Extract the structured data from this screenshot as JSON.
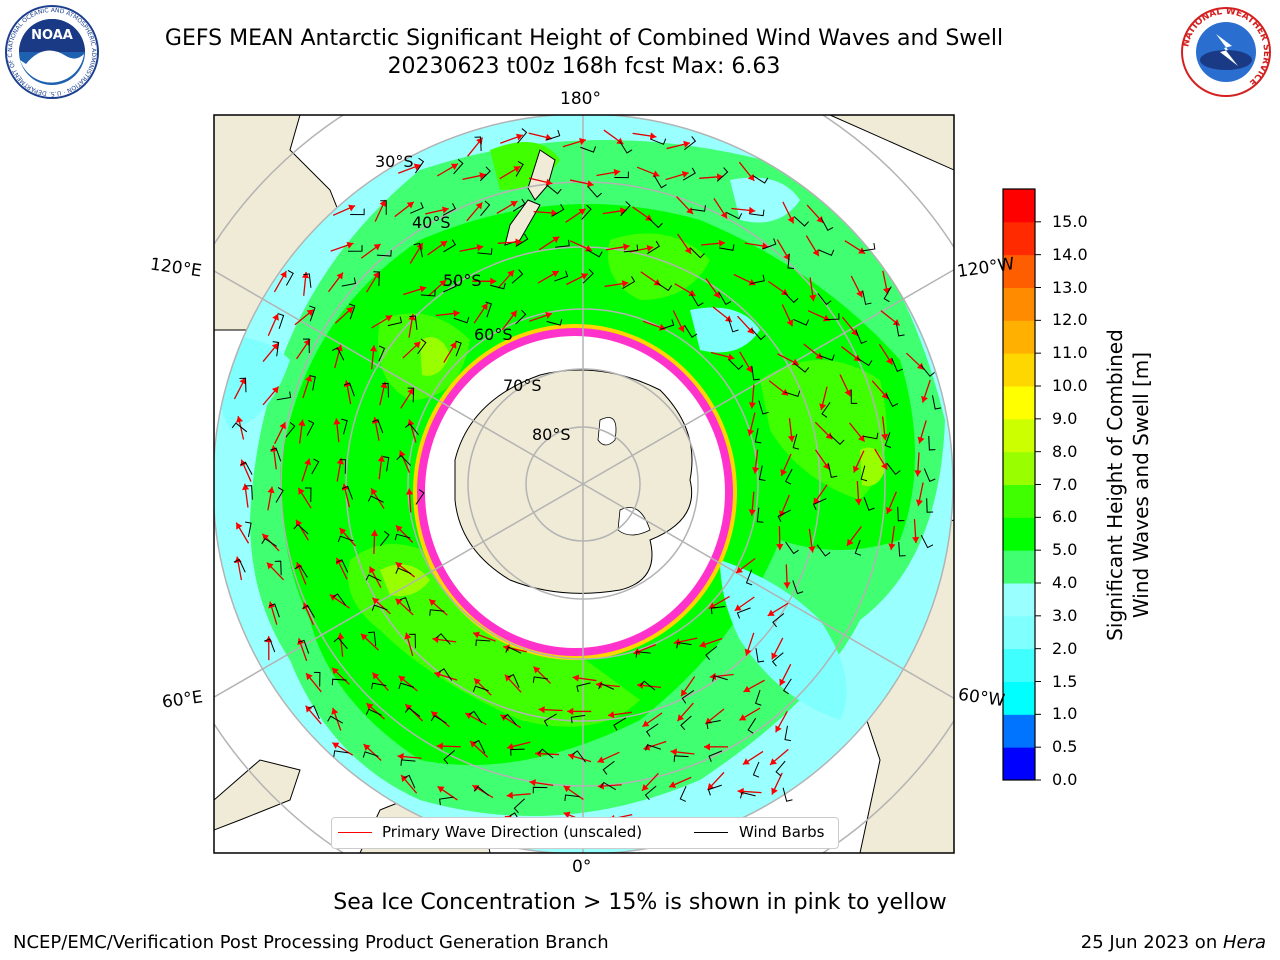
{
  "title": {
    "line1": "GEFS MEAN Antarctic Significant Height of Combined Wind Waves and Swell",
    "line2": "20230623 t00z 168h fcst   Max: 6.63"
  },
  "logos": {
    "noaa": {
      "text": "NOAA",
      "ring_text": "NATIONAL OCEANIC AND ATMOSPHERIC ADMINISTRATION · U.S. DEPARTMENT OF COMMERCE"
    },
    "nws": {
      "ring_text": "NATIONAL WEATHER SERVICE"
    }
  },
  "map": {
    "projection": "south-polar-stereographic",
    "longitude_labels": {
      "top": "180°",
      "bottom": "0°",
      "left_upper": "120°E",
      "left_lower": "60°E",
      "right_upper": "120°W",
      "right_lower": "60°W"
    },
    "latitude_labels": [
      "30°S",
      "40°S",
      "50°S",
      "60°S",
      "70°S",
      "80°S"
    ],
    "colors": {
      "land": "#efebd7",
      "ice_edge": "#ff33cc",
      "ice_shelf": "#ffffff",
      "grid": "#b3b3b3"
    }
  },
  "colorbar": {
    "label_line1": "Significant Height of Combined",
    "label_line2": "Wind Waves and Swell [m]",
    "ticks": [
      "0.0",
      "0.5",
      "1.0",
      "1.5",
      "2.0",
      "3.0",
      "4.0",
      "5.0",
      "6.0",
      "7.0",
      "8.0",
      "9.0",
      "10.0",
      "11.0",
      "12.0",
      "13.0",
      "14.0",
      "15.0"
    ],
    "colors": [
      "#0000ff",
      "#0073ff",
      "#00ffff",
      "#40ffff",
      "#80ffff",
      "#99ffff",
      "#40ff70",
      "#00ff00",
      "#40ff00",
      "#99ff00",
      "#ccff00",
      "#ffff00",
      "#ffd700",
      "#ffb000",
      "#ff8c00",
      "#ff5e00",
      "#ff2a00",
      "#ff0000"
    ]
  },
  "legend": {
    "wave_direction": "Primary Wave Direction (unscaled)",
    "wind_barbs": "Wind Barbs",
    "wave_color": "#ff0000",
    "barb_color": "#000000"
  },
  "note": "Sea Ice Concentration > 15% is shown in pink to yellow",
  "footer": {
    "left": "NCEP/EMC/Verification Post Processing Product Generation Branch",
    "date": "25 Jun 2023 on ",
    "machine": "Hera"
  }
}
